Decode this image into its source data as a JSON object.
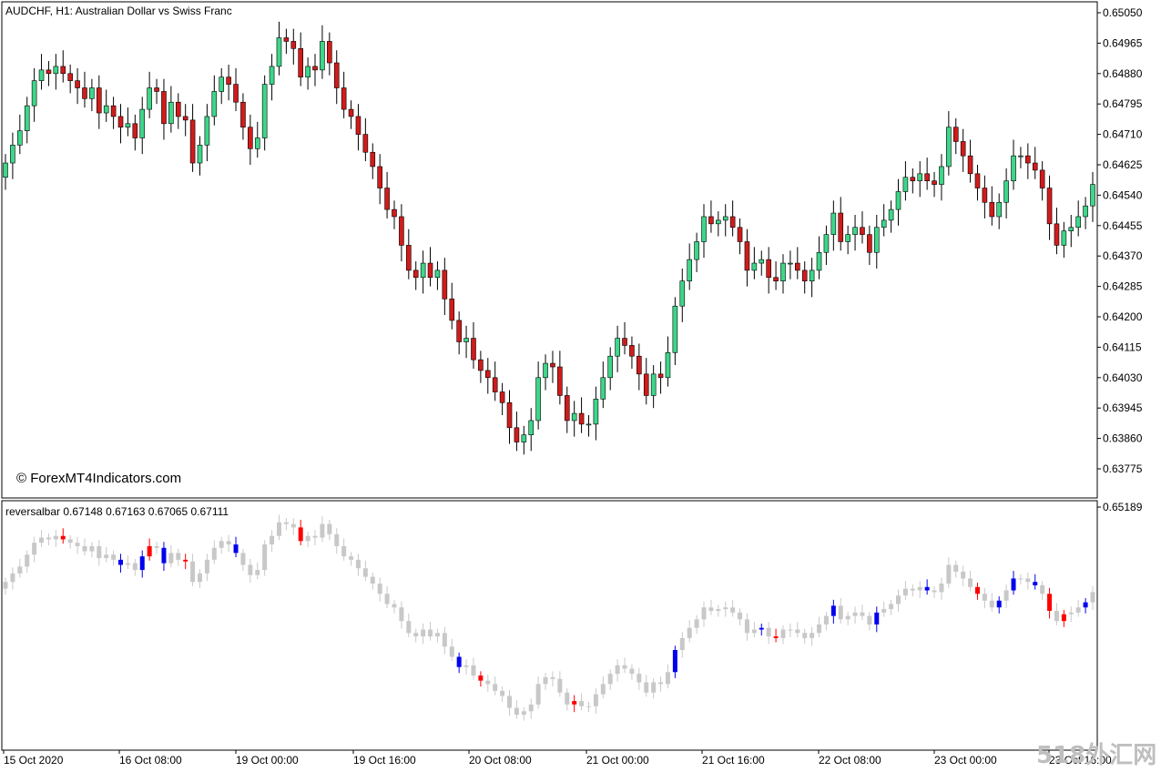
{
  "main_panel": {
    "header": "AUDCHF, H1:  Australian Dollar vs Swiss Franc",
    "watermark": "© ForexMT4Indicators.com",
    "price_labels": [
      "0.65050",
      "0.64965",
      "0.64880",
      "0.64795",
      "0.64710",
      "0.64625",
      "0.64540",
      "0.64455",
      "0.64370",
      "0.64285",
      "0.64200",
      "0.64115",
      "0.64030",
      "0.63945",
      "0.63860",
      "0.63775"
    ]
  },
  "indicator_panel": {
    "header": "reversalbar 0.67148 0.67163 0.67065 0.67111",
    "price_label": "0.65189"
  },
  "time_labels": [
    "15 Oct 2020",
    "16 Oct 08:00",
    "19 Oct 00:00",
    "19 Oct 16:00",
    "20 Oct 08:00",
    "21 Oct 00:00",
    "21 Oct 16:00",
    "22 Oct 08:00",
    "23 Oct 00:00",
    "23 Oct 16:00"
  ],
  "corner_logo": "518外汇网",
  "colors": {
    "bull": "#3ed68a",
    "bear": "#d11b1b",
    "neutral": "#c8c8c8",
    "signal_bull": "#0000ee",
    "signal_bear": "#ff0000"
  },
  "chart_data": {
    "type": "candlestick",
    "symbol": "AUDCHF",
    "timeframe": "H1",
    "ylim": [
      0.6371,
      0.6509
    ],
    "yticks": [
      0.6505,
      0.64965,
      0.6488,
      0.64795,
      0.6471,
      0.64625,
      0.6454,
      0.64455,
      0.6437,
      0.64285,
      0.642,
      0.64115,
      0.6403,
      0.63945,
      0.6386,
      0.63775
    ],
    "closes": [
      0.6463,
      0.6468,
      0.6472,
      0.6479,
      0.6486,
      0.6489,
      0.6488,
      0.649,
      0.6488,
      0.6486,
      0.6484,
      0.6481,
      0.6484,
      0.6477,
      0.6479,
      0.6476,
      0.6473,
      0.6474,
      0.647,
      0.6478,
      0.6484,
      0.6483,
      0.6474,
      0.648,
      0.6476,
      0.6475,
      0.6463,
      0.6468,
      0.6476,
      0.6483,
      0.6487,
      0.6485,
      0.648,
      0.6473,
      0.6467,
      0.647,
      0.6485,
      0.649,
      0.6498,
      0.6497,
      0.6495,
      0.6487,
      0.649,
      0.6489,
      0.6497,
      0.6491,
      0.6484,
      0.6478,
      0.6476,
      0.6471,
      0.6466,
      0.6462,
      0.6456,
      0.645,
      0.6448,
      0.644,
      0.6433,
      0.6431,
      0.6435,
      0.6431,
      0.6433,
      0.6425,
      0.6419,
      0.6413,
      0.6414,
      0.6408,
      0.6405,
      0.6403,
      0.6399,
      0.6396,
      0.6389,
      0.6385,
      0.6387,
      0.6391,
      0.6403,
      0.6407,
      0.6406,
      0.6398,
      0.6391,
      0.6393,
      0.639,
      0.639,
      0.6397,
      0.6403,
      0.6409,
      0.6414,
      0.6412,
      0.6409,
      0.6404,
      0.6398,
      0.6404,
      0.6403,
      0.641,
      0.6423,
      0.643,
      0.6436,
      0.6441,
      0.6448,
      0.6446,
      0.6447,
      0.6448,
      0.6445,
      0.6441,
      0.6433,
      0.6435,
      0.6436,
      0.6431,
      0.643,
      0.6435,
      0.6435,
      0.6433,
      0.643,
      0.6433,
      0.6438,
      0.6443,
      0.6449,
      0.6441,
      0.6443,
      0.6445,
      0.6443,
      0.6438,
      0.6445,
      0.6447,
      0.645,
      0.6455,
      0.6459,
      0.6458,
      0.646,
      0.6458,
      0.6457,
      0.6462,
      0.6473,
      0.6469,
      0.6465,
      0.646,
      0.6456,
      0.6452,
      0.6448,
      0.6452,
      0.6458,
      0.6465,
      0.6465,
      0.6463,
      0.6461,
      0.6456,
      0.6446,
      0.644,
      0.6444,
      0.6445,
      0.6448,
      0.6451,
      0.6457
    ]
  }
}
